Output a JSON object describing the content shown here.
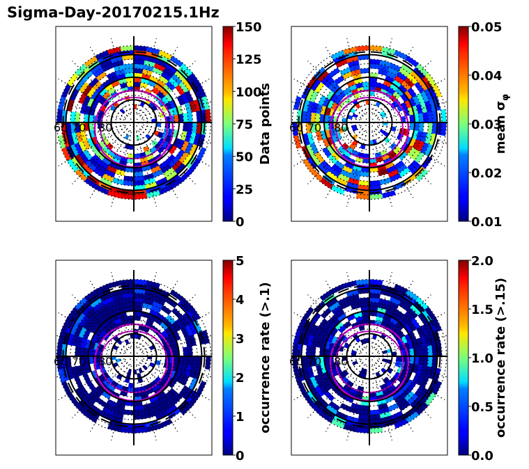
{
  "figure": {
    "title": "Sigma-Day-20170215.1Hz"
  },
  "chart_data": [
    {
      "type": "heatmap",
      "panel": "top-left",
      "projection": "polar (magnetic latitude rings)",
      "ring_labels": [
        "60",
        "70",
        "80"
      ],
      "colorbar": {
        "label": "Data points",
        "min": 0,
        "max": 150,
        "ticks": [
          "0",
          "25",
          "50",
          "75",
          "100",
          "125",
          "150"
        ]
      },
      "value_range": [
        5,
        150
      ]
    },
    {
      "type": "heatmap",
      "panel": "top-right",
      "projection": "polar (magnetic latitude rings)",
      "ring_labels": [
        "60",
        "70",
        "80"
      ],
      "colorbar": {
        "label": "mean σ",
        "label_subscript": "φ",
        "min": 0.01,
        "max": 0.05,
        "ticks": [
          "0.01",
          "0.02",
          "0.03",
          "0.04",
          "0.05"
        ]
      },
      "value_range": [
        0.015,
        0.05
      ]
    },
    {
      "type": "heatmap",
      "panel": "bottom-left",
      "projection": "polar (magnetic latitude rings)",
      "ring_labels": [
        "60",
        "70",
        "80"
      ],
      "colorbar": {
        "label": "occurrence rate (>.1)",
        "min": 0,
        "max": 5,
        "ticks": [
          "0",
          "1",
          "2",
          "3",
          "4",
          "5"
        ]
      },
      "value_range": [
        0,
        1.5
      ]
    },
    {
      "type": "heatmap",
      "panel": "bottom-right",
      "projection": "polar (magnetic latitude rings)",
      "ring_labels": [
        "60",
        "70",
        "80"
      ],
      "colorbar": {
        "label": "occurrence rate (>.15)",
        "min": 0.0,
        "max": 2.0,
        "ticks": [
          "0.0",
          "0.5",
          "1.0",
          "1.5",
          "2.0"
        ]
      },
      "value_range": [
        0,
        1.0
      ]
    }
  ]
}
